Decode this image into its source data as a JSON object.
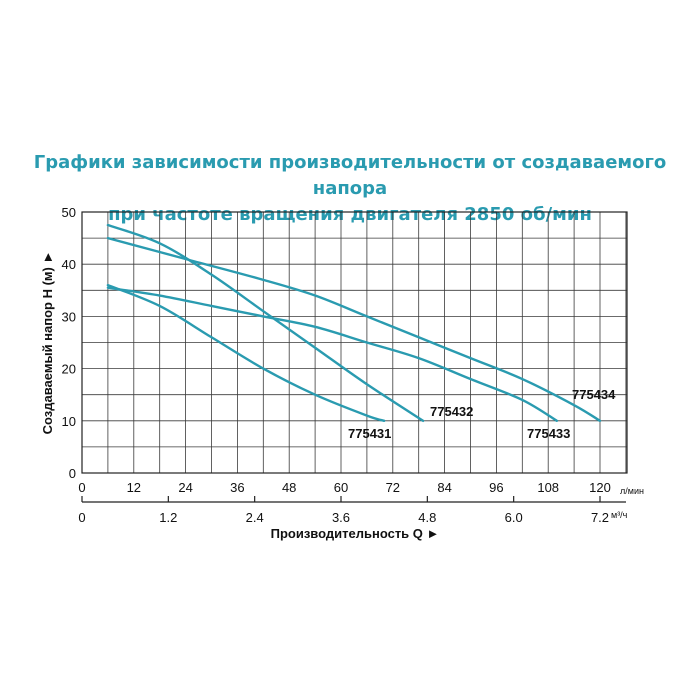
{
  "chart_data": {
    "type": "line",
    "title": "Графики зависимости производительности от создаваемого напора",
    "subtitle": "при частоте вращения двигателя 2850 об/мин",
    "ylabel": "Создаваемый напор H (м) ►",
    "xlabel": "Производительность Q ►",
    "x_unit": "л/мин",
    "x2_unit": "м³/ч",
    "ylim": [
      0,
      50
    ],
    "xlim": [
      0,
      120
    ],
    "y_ticks": [
      "0",
      "10",
      "20",
      "30",
      "40",
      "50"
    ],
    "x_ticks": [
      "0",
      "12",
      "24",
      "36",
      "48",
      "60",
      "72",
      "84",
      "96",
      "108",
      "120"
    ],
    "x2_ticks": [
      "0",
      "1.2",
      "2.4",
      "3.6",
      "4.8",
      "6.0",
      "7.2"
    ],
    "grid": true,
    "series": [
      {
        "name": "775431",
        "x": [
          6,
          18,
          30,
          42,
          54,
          66,
          70
        ],
        "y": [
          36,
          32,
          26,
          20,
          15,
          11,
          10
        ]
      },
      {
        "name": "775432",
        "x": [
          6,
          18,
          30,
          42,
          54,
          66,
          79
        ],
        "y": [
          47.5,
          44,
          38,
          31,
          24,
          17,
          10
        ]
      },
      {
        "name": "775433",
        "x": [
          6,
          18,
          30,
          42,
          54,
          66,
          78,
          90,
          102,
          110
        ],
        "y": [
          35.5,
          34,
          32,
          30,
          28,
          25,
          22,
          18,
          14,
          10
        ]
      },
      {
        "name": "775434",
        "x": [
          6,
          24,
          42,
          54,
          66,
          78,
          90,
          102,
          114,
          120
        ],
        "y": [
          45,
          41,
          37,
          34,
          30,
          26,
          22,
          18,
          13,
          10
        ]
      }
    ]
  }
}
